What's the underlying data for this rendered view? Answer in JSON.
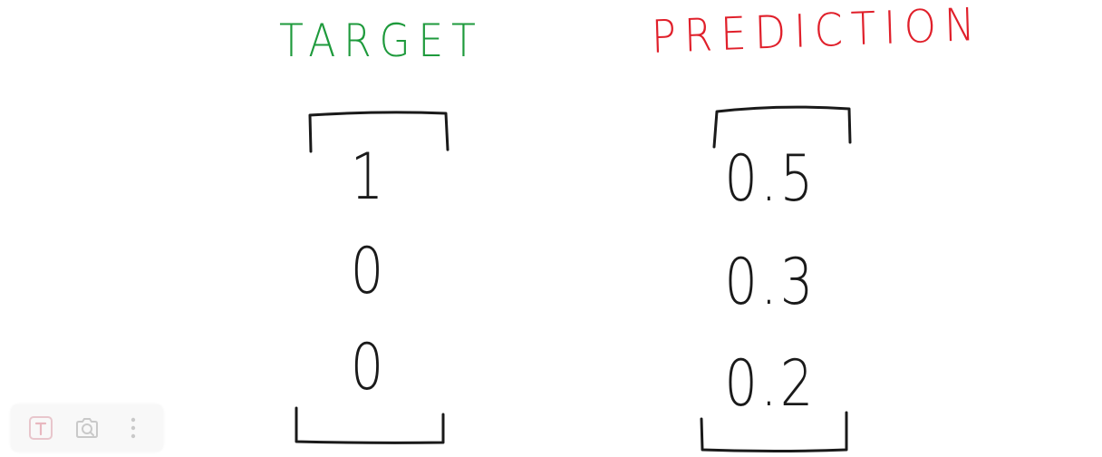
{
  "headings": {
    "target": "TARGET",
    "prediction": "PREDICTION"
  },
  "target_values": [
    "1",
    "0",
    "0"
  ],
  "prediction_values": [
    "0.5",
    "0.3",
    "0.2"
  ],
  "colors": {
    "target": "#1e9a3c",
    "prediction": "#e0202b",
    "ink": "#1a1a1a"
  },
  "toolbar": {
    "items": [
      "text-tool-icon",
      "camera-icon",
      "more-options-icon"
    ]
  }
}
